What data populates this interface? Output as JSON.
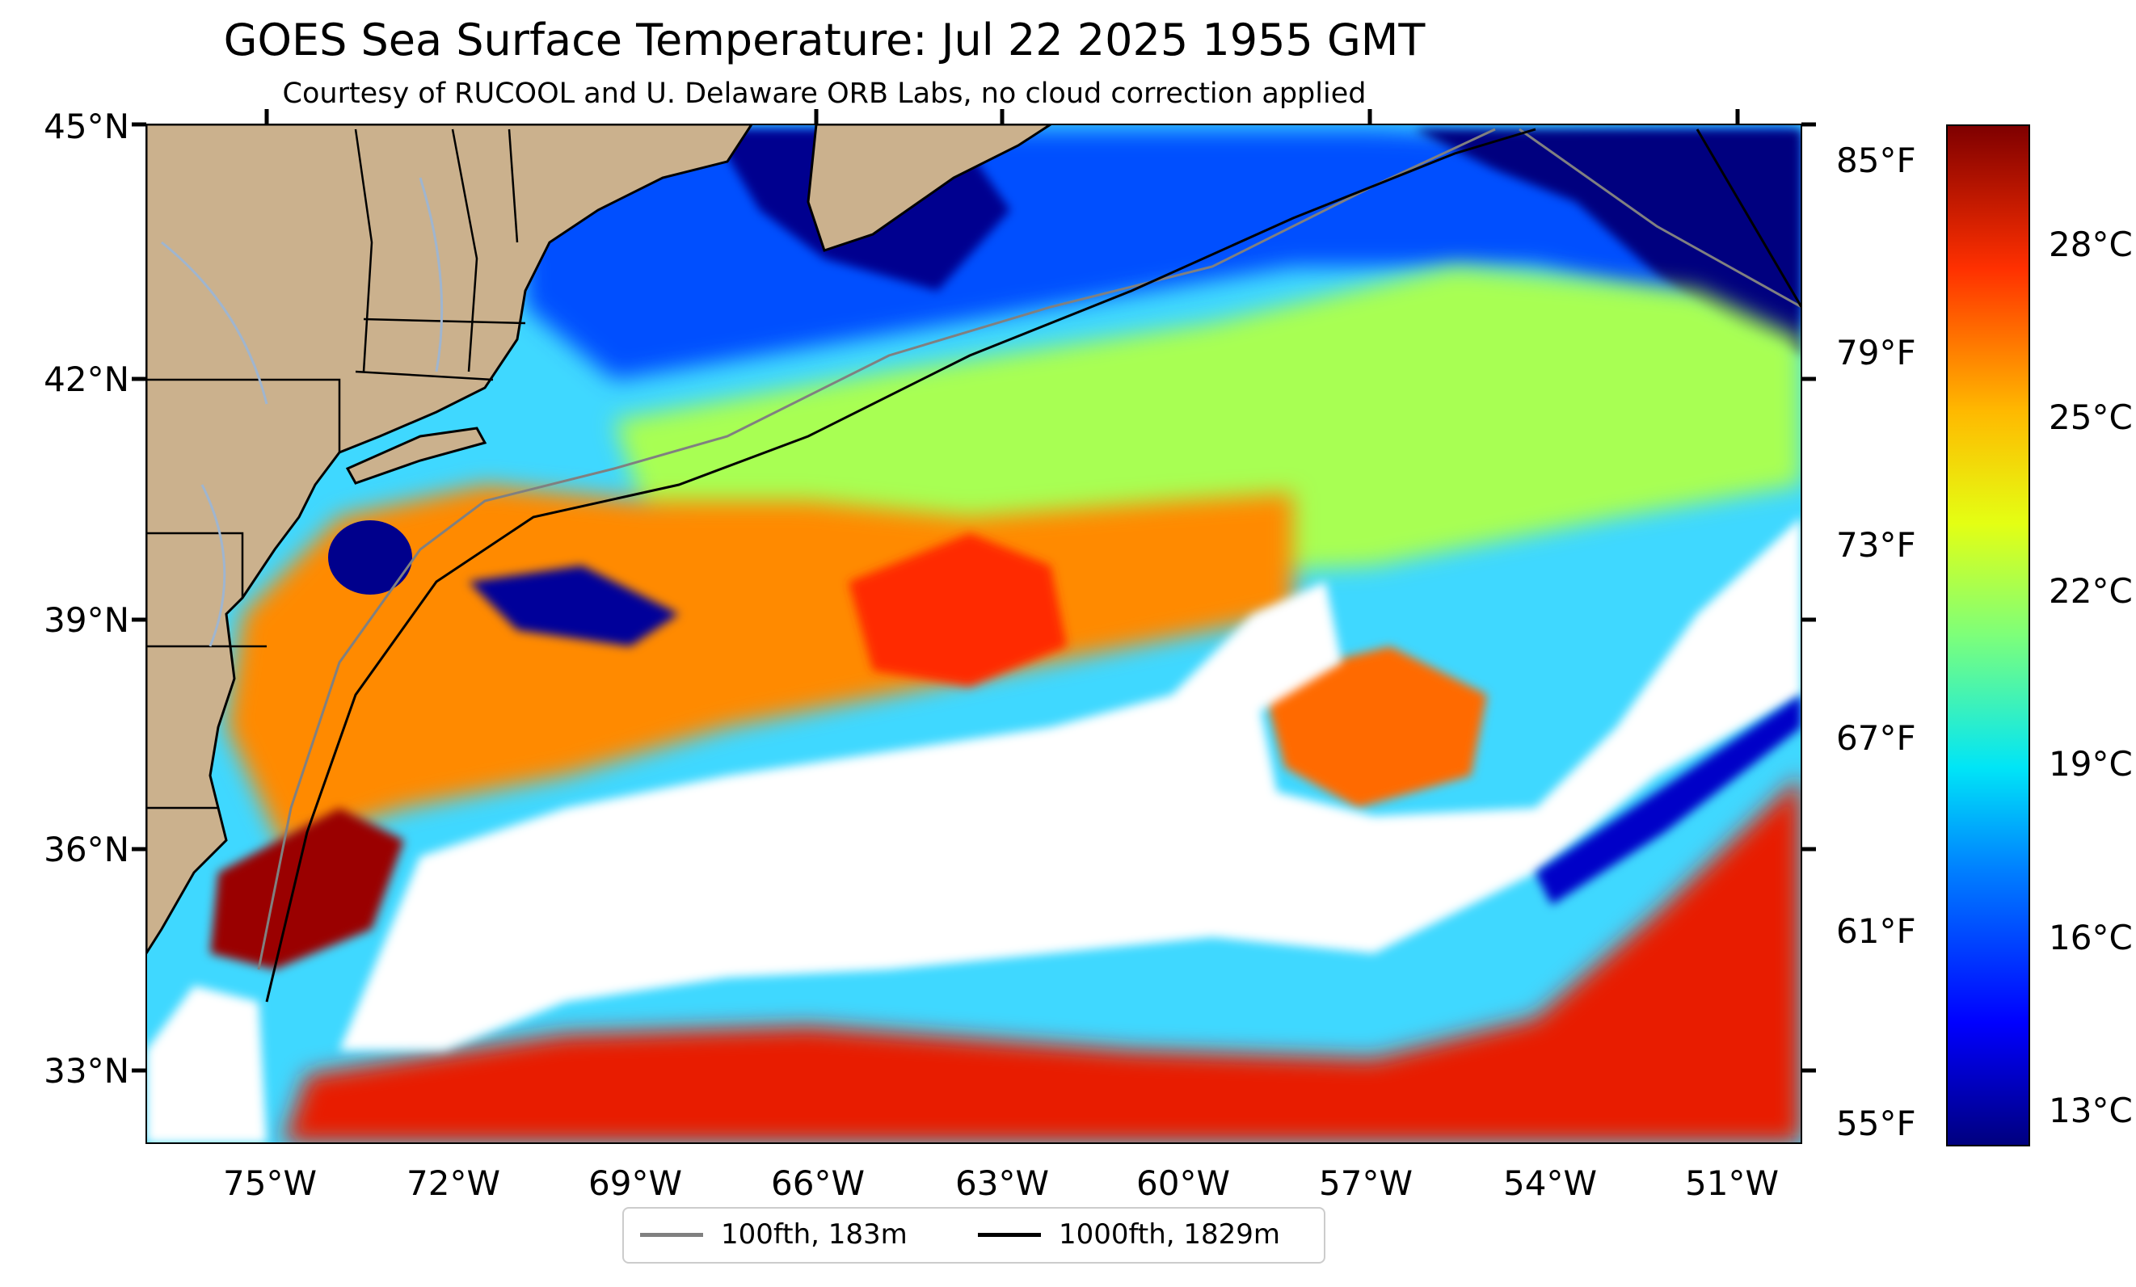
{
  "title": "GOES Sea Surface Temperature: Jul 22 2025 1955 GMT",
  "subtitle": "Courtesy of RUCOOL and U. Delaware ORB Labs, no cloud correction applied",
  "map": {
    "lat_labels": [
      "45°N",
      "42°N",
      "39°N",
      "36°N",
      "33°N"
    ],
    "lon_labels": [
      "75°W",
      "72°W",
      "69°W",
      "66°W",
      "63°W",
      "60°W",
      "57°W",
      "54°W",
      "51°W"
    ],
    "land_color": "#cbb18d",
    "ocean_no_data_color": "#ffffff"
  },
  "legend": {
    "items": [
      {
        "label": "100fth, 183m",
        "color": "#808080"
      },
      {
        "label": "1000fth, 1829m",
        "color": "#000000"
      }
    ]
  },
  "colorbar": {
    "fahrenheit_labels": [
      "85°F",
      "79°F",
      "73°F",
      "67°F",
      "61°F",
      "55°F"
    ],
    "celsius_labels": [
      "28°C",
      "25°C",
      "22°C",
      "19°C",
      "16°C",
      "13°C"
    ],
    "colormap": "jet"
  }
}
